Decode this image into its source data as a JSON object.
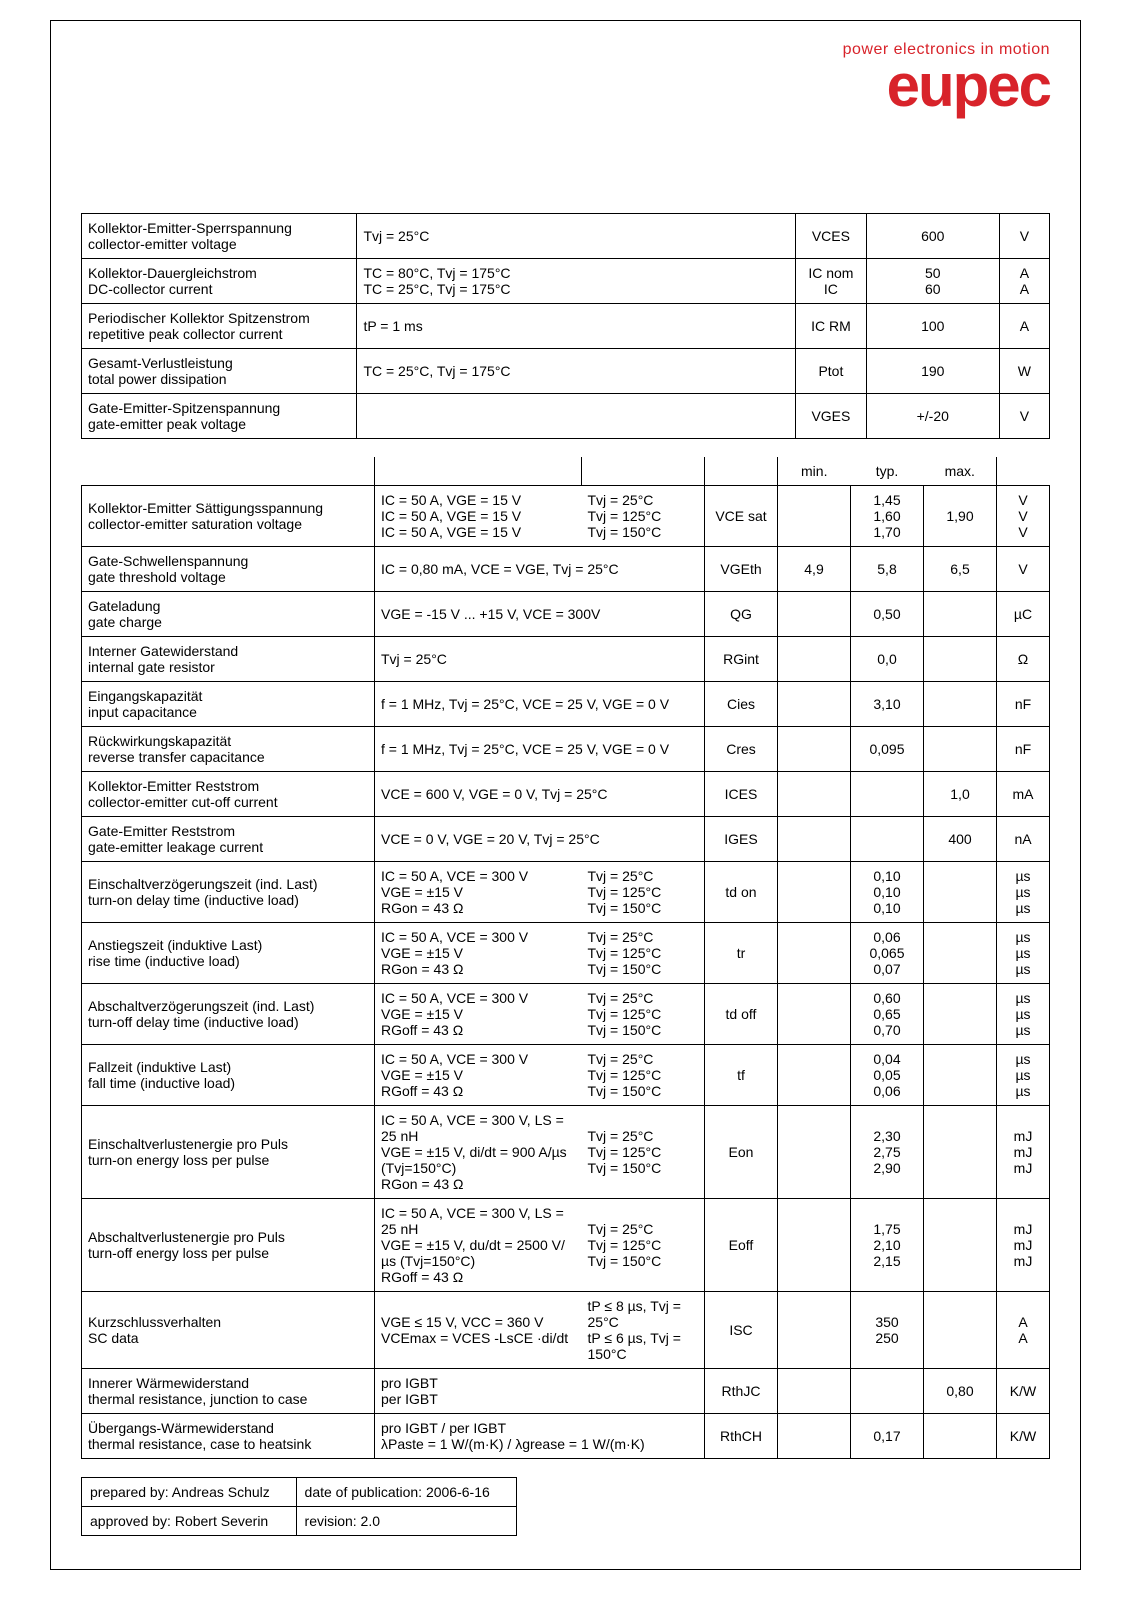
{
  "logo": {
    "tagline": "power electronics in motion",
    "tagline_color": "#d8232a",
    "word": "eupec",
    "word_color": "#d8232a"
  },
  "table1": {
    "rows": [
      {
        "p1": "Kollektor-Emitter-Sperrspannung",
        "p2": "collector-emitter voltage",
        "cond": "Tvj = 25°C",
        "sym": "VCES",
        "val": "600",
        "unit": "V"
      },
      {
        "p1": "Kollektor-Dauergleichstrom",
        "p2": "DC-collector current",
        "cond": "TC = 80°C, Tvj = 175°C\nTC = 25°C, Tvj = 175°C",
        "sym": "IC nom\nIC",
        "val": "50\n60",
        "unit": "A\nA"
      },
      {
        "p1": "Periodischer Kollektor Spitzenstrom",
        "p2": "repetitive peak collector current",
        "cond": "tP = 1 ms",
        "sym": "IC RM",
        "val": "100",
        "unit": "A"
      },
      {
        "p1": "Gesamt-Verlustleistung",
        "p2": "total power dissipation",
        "cond": "TC = 25°C, Tvj = 175°C",
        "sym": "Ptot",
        "val": "190",
        "unit": "W"
      },
      {
        "p1": "Gate-Emitter-Spitzenspannung",
        "p2": "gate-emitter peak voltage",
        "cond": "",
        "sym": "VGES",
        "val": "+/-20",
        "unit": "V"
      }
    ]
  },
  "table2": {
    "header": {
      "min": "min.",
      "typ": "typ.",
      "max": "max."
    },
    "rows": [
      {
        "p1": "Kollektor-Emitter Sättigungsspannung",
        "p2": "collector-emitter saturation voltage",
        "cond1": "IC = 50 A, VGE = 15 V\nIC = 50 A, VGE = 15 V\nIC = 50 A, VGE = 15 V",
        "cond2": "Tvj = 25°C\nTvj = 125°C\nTvj = 150°C",
        "sym": "VCE sat",
        "min": "",
        "typ": "1,45\n1,60\n1,70",
        "max": "1,90",
        "unit": "V\nV\nV"
      },
      {
        "p1": "Gate-Schwellenspannung",
        "p2": "gate threshold voltage",
        "cond1": "IC = 0,80 mA, VCE = VGE, Tvj = 25°C",
        "cond2": "",
        "sym": "VGEth",
        "min": "4,9",
        "typ": "5,8",
        "max": "6,5",
        "unit": "V"
      },
      {
        "p1": "Gateladung",
        "p2": "gate charge",
        "cond1": "VGE = -15 V ... +15 V, VCE = 300V",
        "cond2": "",
        "sym": "QG",
        "min": "",
        "typ": "0,50",
        "max": "",
        "unit": "µC"
      },
      {
        "p1": "Interner Gatewiderstand",
        "p2": "internal gate resistor",
        "cond1": "Tvj = 25°C",
        "cond2": "",
        "sym": "RGint",
        "min": "",
        "typ": "0,0",
        "max": "",
        "unit": "Ω"
      },
      {
        "p1": "Eingangskapazität",
        "p2": "input capacitance",
        "cond1": "f = 1 MHz, Tvj = 25°C, VCE = 25 V, VGE = 0 V",
        "cond2": "",
        "sym": "Cies",
        "min": "",
        "typ": "3,10",
        "max": "",
        "unit": "nF"
      },
      {
        "p1": "Rückwirkungskapazität",
        "p2": "reverse transfer capacitance",
        "cond1": "f = 1 MHz, Tvj = 25°C, VCE = 25 V, VGE = 0 V",
        "cond2": "",
        "sym": "Cres",
        "min": "",
        "typ": "0,095",
        "max": "",
        "unit": "nF"
      },
      {
        "p1": "Kollektor-Emitter Reststrom",
        "p2": "collector-emitter cut-off current",
        "cond1": "VCE = 600 V, VGE = 0 V, Tvj = 25°C",
        "cond2": "",
        "sym": "ICES",
        "min": "",
        "typ": "",
        "max": "1,0",
        "unit": "mA"
      },
      {
        "p1": "Gate-Emitter Reststrom",
        "p2": "gate-emitter leakage current",
        "cond1": "VCE = 0 V, VGE = 20 V, Tvj = 25°C",
        "cond2": "",
        "sym": "IGES",
        "min": "",
        "typ": "",
        "max": "400",
        "unit": "nA"
      },
      {
        "p1": "Einschaltverzögerungszeit (ind. Last)",
        "p2": "turn-on delay time (inductive load)",
        "cond1": "IC = 50 A, VCE = 300 V\nVGE = ±15 V\nRGon = 43 Ω",
        "cond2": "Tvj = 25°C\nTvj = 125°C\nTvj = 150°C",
        "sym": "td on",
        "min": "",
        "typ": "0,10\n0,10\n0,10",
        "max": "",
        "unit": "µs\nµs\nµs"
      },
      {
        "p1": "Anstiegszeit (induktive Last)",
        "p2": "rise time (inductive load)",
        "cond1": "IC = 50 A, VCE = 300 V\nVGE = ±15 V\nRGon = 43 Ω",
        "cond2": "Tvj = 25°C\nTvj = 125°C\nTvj = 150°C",
        "sym": "tr",
        "min": "",
        "typ": "0,06\n0,065\n0,07",
        "max": "",
        "unit": "µs\nµs\nµs"
      },
      {
        "p1": "Abschaltverzögerungszeit (ind. Last)",
        "p2": "turn-off delay time (inductive load)",
        "cond1": "IC = 50 A, VCE = 300 V\nVGE = ±15 V\nRGoff = 43 Ω",
        "cond2": "Tvj = 25°C\nTvj = 125°C\nTvj = 150°C",
        "sym": "td off",
        "min": "",
        "typ": "0,60\n0,65\n0,70",
        "max": "",
        "unit": "µs\nµs\nµs"
      },
      {
        "p1": "Fallzeit (induktive Last)",
        "p2": "fall time (inductive load)",
        "cond1": "IC = 50 A, VCE = 300 V\nVGE = ±15 V\nRGoff = 43 Ω",
        "cond2": "Tvj = 25°C\nTvj = 125°C\nTvj = 150°C",
        "sym": "tf",
        "min": "",
        "typ": "0,04\n0,05\n0,06",
        "max": "",
        "unit": "µs\nµs\nµs"
      },
      {
        "p1": "Einschaltverlustenergie pro Puls",
        "p2": "turn-on energy loss per pulse",
        "cond1": "IC = 50 A, VCE = 300 V, LS = 25 nH\nVGE = ±15 V, di/dt = 900 A/µs (Tvj=150°C)\nRGon = 43 Ω",
        "cond2": "Tvj = 25°C\nTvj = 125°C\nTvj = 150°C",
        "sym": "Eon",
        "min": "",
        "typ": "2,30\n2,75\n2,90",
        "max": "",
        "unit": "mJ\nmJ\nmJ"
      },
      {
        "p1": "Abschaltverlustenergie pro Puls",
        "p2": "turn-off energy loss per pulse",
        "cond1": "IC = 50 A, VCE = 300 V, LS = 25 nH\nVGE = ±15 V, du/dt = 2500 V/µs (Tvj=150°C)\nRGoff = 43 Ω",
        "cond2": "Tvj = 25°C\nTvj = 125°C\nTvj = 150°C",
        "sym": "Eoff",
        "min": "",
        "typ": "1,75\n2,10\n2,15",
        "max": "",
        "unit": "mJ\nmJ\nmJ"
      },
      {
        "p1": "Kurzschlussverhalten",
        "p2": "SC data",
        "cond1": "VGE ≤ 15 V, VCC = 360 V\nVCEmax = VCES -LsCE ·di/dt",
        "cond2": "tP ≤ 8 µs, Tvj = 25°C\ntP ≤ 6 µs, Tvj = 150°C",
        "sym": "ISC",
        "min": "",
        "typ": "350\n250",
        "max": "",
        "unit": "A\nA"
      },
      {
        "p1": "Innerer Wärmewiderstand",
        "p2": "thermal resistance, junction to case",
        "cond1": "pro IGBT\nper IGBT",
        "cond2": "",
        "sym": "RthJC",
        "min": "",
        "typ": "",
        "max": "0,80",
        "unit": "K/W"
      },
      {
        "p1": "Übergangs-Wärmewiderstand",
        "p2": "thermal resistance, case to heatsink",
        "cond1": "pro IGBT / per IGBT\nλPaste = 1 W/(m·K)   /    λgrease = 1 W/(m·K)",
        "cond2": "",
        "sym": "RthCH",
        "min": "",
        "typ": "0,17",
        "max": "",
        "unit": "K/W"
      }
    ]
  },
  "meta": {
    "prepared_label": "prepared by: Andreas Schulz",
    "date_label": "date of publication: 2006-6-16",
    "approved_label": "approved by: Robert Severin",
    "revision_label": "revision: 2.0"
  }
}
